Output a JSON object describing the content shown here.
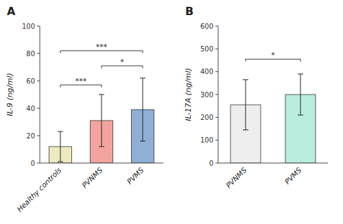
{
  "chart_data": [
    {
      "type": "bar",
      "title": "A",
      "categories": [
        "Healthy controls",
        "PVNMS",
        "PVMS"
      ],
      "values": [
        12,
        31,
        39
      ],
      "errors": [
        11,
        19,
        23
      ],
      "colors": [
        "#eeeac0",
        "#f4a49e",
        "#8fafd4"
      ],
      "y_label": "IL-9 (ng/ml)",
      "ylim": [
        0,
        100
      ],
      "yticks": [
        0,
        20,
        40,
        60,
        80,
        100
      ],
      "grid": false,
      "annotations": [
        {
          "from": "Healthy controls",
          "to": "PVNMS",
          "y": 57,
          "label": "***"
        },
        {
          "from": "Healthy controls",
          "to": "PVMS",
          "y": 82,
          "label": "***"
        },
        {
          "from": "PVNMS",
          "to": "PVMS",
          "y": 71,
          "label": "*"
        }
      ]
    },
    {
      "type": "bar",
      "title": "B",
      "categories": [
        "PVNMS",
        "PVMS"
      ],
      "values": [
        255,
        300
      ],
      "errors": [
        110,
        90
      ],
      "colors": [
        "#eeeeee",
        "#b8ede0"
      ],
      "y_label": "IL-17A (ng/ml)",
      "ylim": [
        0,
        600
      ],
      "yticks": [
        0,
        100,
        200,
        300,
        400,
        500,
        600
      ],
      "grid": false,
      "annotations": [
        {
          "from": "PVNMS",
          "to": "PVMS",
          "y": 455,
          "label": "*"
        }
      ]
    }
  ]
}
